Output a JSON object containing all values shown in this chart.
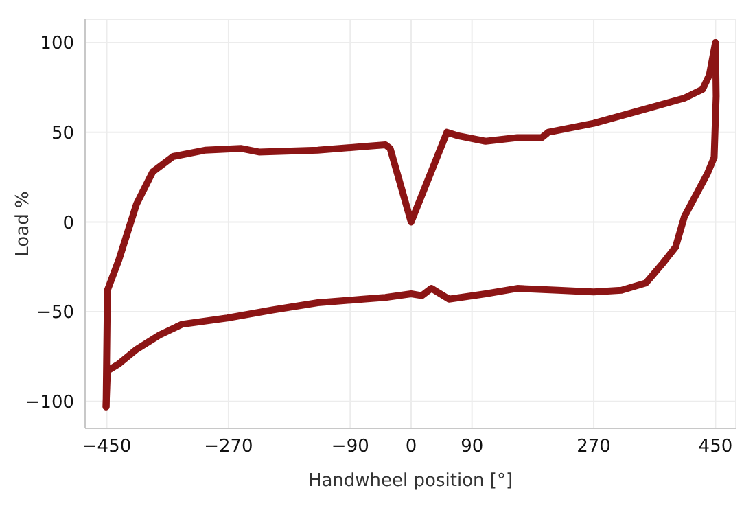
{
  "chart_data": {
    "type": "line",
    "xlabel": "Handwheel position [°]",
    "ylabel": "Load %",
    "xlim": [
      -482,
      480
    ],
    "ylim": [
      -115,
      113
    ],
    "xticks": [
      -450,
      -270,
      -90,
      0,
      90,
      270,
      450
    ],
    "yticks": [
      -100,
      -50,
      0,
      50,
      100
    ],
    "grid": true,
    "marker": "none",
    "line_style": "solid",
    "series": [
      {
        "color": "#8c1515",
        "x": [
          -451,
          -449,
          -432,
          -406,
          -382,
          -352,
          -305,
          -252,
          -225,
          -138,
          -71,
          -38,
          -31,
          0,
          53,
          70,
          110,
          157,
          193,
          203,
          270,
          337,
          404,
          431,
          441,
          450
        ],
        "values": [
          -103,
          -38,
          -21,
          10,
          28,
          36.5,
          40,
          41,
          39,
          40,
          42,
          43,
          41,
          0,
          50,
          48,
          45,
          47,
          47,
          50,
          55,
          62,
          69,
          74,
          82,
          100
        ]
      },
      {
        "color": "#8c1515",
        "x": [
          -451,
          -449,
          -432,
          -406,
          -372,
          -339,
          -272,
          -205,
          -138,
          -71,
          -38,
          0,
          16,
          30,
          56,
          110,
          157,
          217,
          270,
          311,
          347,
          354,
          371,
          391,
          404,
          438,
          448,
          451,
          450
        ],
        "values": [
          -103,
          -83,
          -79,
          -71,
          -63,
          -57,
          -53.5,
          -49,
          -45,
          -43,
          -42,
          -40,
          -41,
          -37,
          -43,
          -40,
          -37,
          -38,
          -39,
          -38,
          -34,
          -31,
          -23.5,
          -14,
          3,
          27,
          36,
          70,
          100
        ]
      }
    ]
  }
}
